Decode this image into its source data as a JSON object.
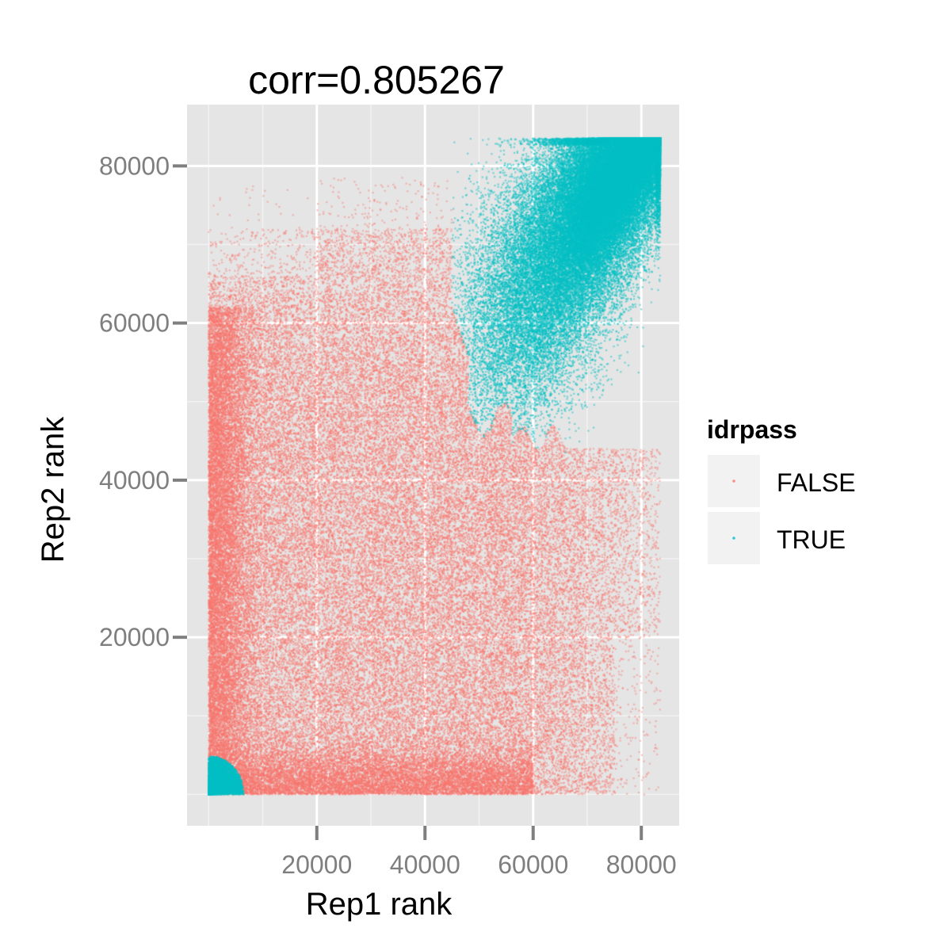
{
  "chart_data": {
    "type": "scatter",
    "title": "corr=0.805267",
    "xlabel": "Rep1 rank",
    "ylabel": "Rep2 rank",
    "xlim": [
      -4000,
      87000
    ],
    "ylim": [
      -4000,
      87800
    ],
    "x_ticks": [
      20000,
      40000,
      60000,
      80000
    ],
    "x_tick_labels": [
      "20000",
      "40000",
      "60000",
      "80000"
    ],
    "y_ticks": [
      20000,
      40000,
      60000,
      80000
    ],
    "y_tick_labels": [
      "20000",
      "40000",
      "60000",
      "80000"
    ],
    "grid": true,
    "background": "#e5e5e5",
    "legend": {
      "title": "idrpass",
      "position": "right",
      "entries": [
        {
          "label": "FALSE",
          "color": "#f8766d"
        },
        {
          "label": "TRUE",
          "color": "#00bfc4"
        }
      ]
    },
    "series": [
      {
        "name": "FALSE",
        "color": "#f8766d",
        "point_count_approx": 60000,
        "extent": {
          "x": [
            0,
            83500
          ],
          "y": [
            0,
            78500
          ]
        },
        "notes": "rank pairs not passing IDR; dense at low ranks, fanning out to higher ranks"
      },
      {
        "name": "TRUE",
        "color": "#00bfc4",
        "point_count_approx": 45000,
        "extent": {
          "x": [
            0,
            83500
          ],
          "y": [
            0,
            83500
          ]
        },
        "notes": "rank pairs passing IDR; concentrated near the upper-right diagonal plus a tight cluster at the origin"
      }
    ]
  }
}
